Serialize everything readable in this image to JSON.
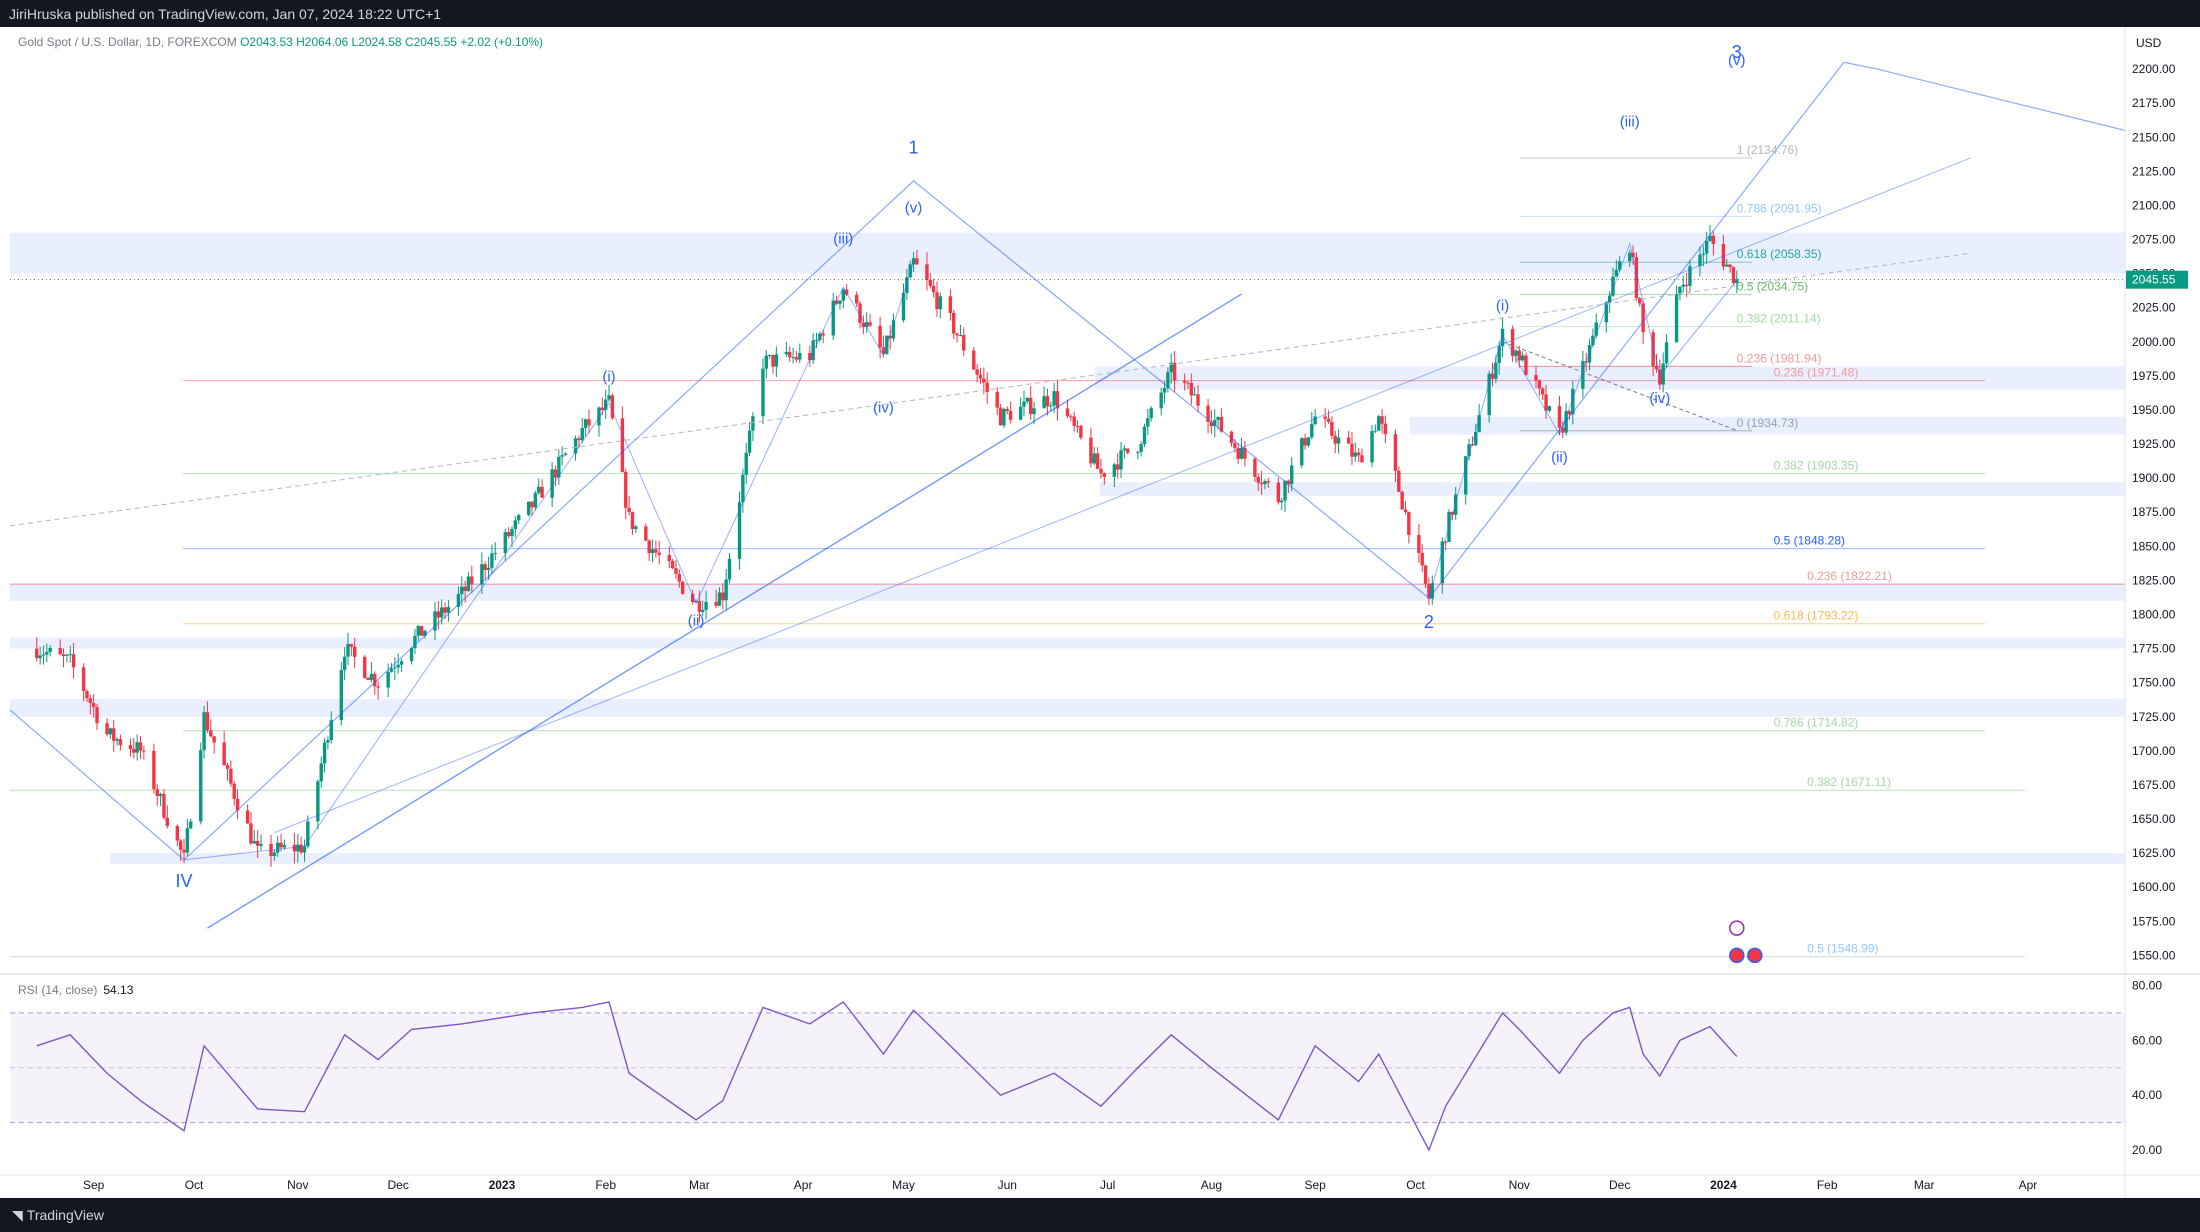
{
  "header": {
    "published": "JiriHruska published on TradingView.com, Jan 07, 2024 18:22 UTC+1"
  },
  "legend": {
    "symbol": "Gold Spot / U.S. Dollar, 1D, FOREXCOM",
    "o": "O2043.53",
    "h": "H2064.06",
    "l": "L2024.58",
    "c": "C2045.55",
    "chg": "+2.02 (+0.10%)"
  },
  "rsi": {
    "label": "RSI (14, close)",
    "value": "54.13"
  },
  "currency": "USD",
  "footer": {
    "brand": "TradingView"
  },
  "colors": {
    "up": "#089981",
    "down": "#f23645",
    "wave": "#2962ff",
    "rsi": "#7e57c2",
    "last": "#089981"
  },
  "chart_data": {
    "type": "candlestick",
    "title": "Gold Spot / U.S. Dollar, 1D, FOREXCOM",
    "ylim": [
      1540,
      2225
    ],
    "last_price": "2045.55",
    "price_ticks": [
      "2200.00",
      "2175.00",
      "2150.00",
      "2125.00",
      "2100.00",
      "2075.00",
      "2050.00",
      "2025.00",
      "2000.00",
      "1975.00",
      "1950.00",
      "1925.00",
      "1900.00",
      "1875.00",
      "1850.00",
      "1825.00",
      "1800.00",
      "1775.00",
      "1750.00",
      "1725.00",
      "1700.00",
      "1675.00",
      "1650.00",
      "1625.00",
      "1600.00",
      "1575.00",
      "1550.00"
    ],
    "time_ticks": [
      {
        "label": "Sep",
        "date": "2022-09-01"
      },
      {
        "label": "Oct",
        "date": "2022-10-01"
      },
      {
        "label": "Nov",
        "date": "2022-11-01"
      },
      {
        "label": "Dec",
        "date": "2022-12-01"
      },
      {
        "label": "2023",
        "date": "2023-01-01",
        "bold": true
      },
      {
        "label": "Feb",
        "date": "2023-02-01"
      },
      {
        "label": "Mar",
        "date": "2023-03-01"
      },
      {
        "label": "Apr",
        "date": "2023-04-01"
      },
      {
        "label": "May",
        "date": "2023-05-01"
      },
      {
        "label": "Jun",
        "date": "2023-06-01"
      },
      {
        "label": "Jul",
        "date": "2023-07-01"
      },
      {
        "label": "Aug",
        "date": "2023-08-01"
      },
      {
        "label": "Sep",
        "date": "2023-09-01"
      },
      {
        "label": "Oct",
        "date": "2023-10-01"
      },
      {
        "label": "Nov",
        "date": "2023-11-01"
      },
      {
        "label": "Dec",
        "date": "2023-12-01"
      },
      {
        "label": "2024",
        "date": "2024-01-01",
        "bold": true
      },
      {
        "label": "Feb",
        "date": "2024-02-01"
      },
      {
        "label": "Mar",
        "date": "2024-03-01"
      },
      {
        "label": "Apr",
        "date": "2024-04-01"
      }
    ],
    "price_path": [
      [
        "2022-08-15",
        1775
      ],
      [
        "2022-08-25",
        1765
      ],
      [
        "2022-09-05",
        1712
      ],
      [
        "2022-09-15",
        1700
      ],
      [
        "2022-09-28",
        1620
      ],
      [
        "2022-10-04",
        1725
      ],
      [
        "2022-10-20",
        1625
      ],
      [
        "2022-11-03",
        1630
      ],
      [
        "2022-11-15",
        1775
      ],
      [
        "2022-11-25",
        1750
      ],
      [
        "2022-12-05",
        1780
      ],
      [
        "2022-12-20",
        1815
      ],
      [
        "2023-01-10",
        1880
      ],
      [
        "2023-01-25",
        1935
      ],
      [
        "2023-02-02",
        1955
      ],
      [
        "2023-02-08",
        1870
      ],
      [
        "2023-02-28",
        1808
      ],
      [
        "2023-03-08",
        1815
      ],
      [
        "2023-03-20",
        1985
      ],
      [
        "2023-04-03",
        1990
      ],
      [
        "2023-04-13",
        2040
      ],
      [
        "2023-04-25",
        1990
      ],
      [
        "2023-05-04",
        2058
      ],
      [
        "2023-05-15",
        2015
      ],
      [
        "2023-05-30",
        1945
      ],
      [
        "2023-06-15",
        1960
      ],
      [
        "2023-06-29",
        1903
      ],
      [
        "2023-07-10",
        1925
      ],
      [
        "2023-07-20",
        1978
      ],
      [
        "2023-08-01",
        1945
      ],
      [
        "2023-08-21",
        1885
      ],
      [
        "2023-09-01",
        1945
      ],
      [
        "2023-09-14",
        1913
      ],
      [
        "2023-09-20",
        1945
      ],
      [
        "2023-10-05",
        1812
      ],
      [
        "2023-10-10",
        1860
      ],
      [
        "2023-10-27",
        2005
      ],
      [
        "2023-11-01",
        1990
      ],
      [
        "2023-11-13",
        1932
      ],
      [
        "2023-11-20",
        1980
      ],
      [
        "2023-11-29",
        2045
      ],
      [
        "2023-12-04",
        2072
      ],
      [
        "2023-12-08",
        2005
      ],
      [
        "2023-12-13",
        1975
      ],
      [
        "2023-12-19",
        2040
      ],
      [
        "2023-12-28",
        2075
      ],
      [
        "2024-01-05",
        2045
      ]
    ],
    "rsi": {
      "ylim": [
        12,
        82
      ],
      "ticks": [
        "80.00",
        "60.00",
        "40.00",
        "20.00"
      ],
      "levels": [
        70,
        50,
        30
      ],
      "path": [
        [
          "2022-08-15",
          58
        ],
        [
          "2022-08-25",
          62
        ],
        [
          "2022-09-05",
          48
        ],
        [
          "2022-09-15",
          38
        ],
        [
          "2022-09-28",
          27
        ],
        [
          "2022-10-04",
          58
        ],
        [
          "2022-10-20",
          35
        ],
        [
          "2022-11-03",
          34
        ],
        [
          "2022-11-15",
          62
        ],
        [
          "2022-11-25",
          53
        ],
        [
          "2022-12-05",
          64
        ],
        [
          "2022-12-20",
          66
        ],
        [
          "2023-01-10",
          70
        ],
        [
          "2023-01-25",
          72
        ],
        [
          "2023-02-02",
          74
        ],
        [
          "2023-02-08",
          48
        ],
        [
          "2023-02-28",
          31
        ],
        [
          "2023-03-08",
          38
        ],
        [
          "2023-03-20",
          72
        ],
        [
          "2023-04-03",
          66
        ],
        [
          "2023-04-13",
          74
        ],
        [
          "2023-04-25",
          55
        ],
        [
          "2023-05-04",
          71
        ],
        [
          "2023-05-15",
          58
        ],
        [
          "2023-05-30",
          40
        ],
        [
          "2023-06-15",
          48
        ],
        [
          "2023-06-29",
          36
        ],
        [
          "2023-07-10",
          50
        ],
        [
          "2023-07-20",
          62
        ],
        [
          "2023-08-01",
          50
        ],
        [
          "2023-08-21",
          31
        ],
        [
          "2023-09-01",
          58
        ],
        [
          "2023-09-14",
          45
        ],
        [
          "2023-09-20",
          55
        ],
        [
          "2023-10-05",
          20
        ],
        [
          "2023-10-10",
          36
        ],
        [
          "2023-10-27",
          70
        ],
        [
          "2023-11-01",
          64
        ],
        [
          "2023-11-13",
          48
        ],
        [
          "2023-11-20",
          60
        ],
        [
          "2023-11-29",
          70
        ],
        [
          "2023-12-04",
          72
        ],
        [
          "2023-12-08",
          55
        ],
        [
          "2023-12-13",
          47
        ],
        [
          "2023-12-19",
          60
        ],
        [
          "2023-12-28",
          65
        ],
        [
          "2024-01-05",
          54.13
        ]
      ]
    },
    "wave_labels": [
      {
        "text": "IV",
        "date": "2022-09-28",
        "price": 1600,
        "big": true
      },
      {
        "text": "(i)",
        "date": "2023-02-02",
        "price": 1971
      },
      {
        "text": "(ii)",
        "date": "2023-02-28",
        "price": 1792
      },
      {
        "text": "(iii)",
        "date": "2023-04-13",
        "price": 2072
      },
      {
        "text": "(iv)",
        "date": "2023-04-25",
        "price": 1948
      },
      {
        "text": "(v)",
        "date": "2023-05-04",
        "price": 2095
      },
      {
        "text": "1",
        "date": "2023-05-05",
        "price": 2138,
        "big": true
      },
      {
        "text": "2",
        "date": "2023-10-05",
        "price": 1790,
        "big": true
      },
      {
        "text": "(i)",
        "date": "2023-10-27",
        "price": 2023
      },
      {
        "text": "(ii)",
        "date": "2023-11-13",
        "price": 1912
      },
      {
        "text": "(iii)",
        "date": "2023-12-04",
        "price": 2158
      },
      {
        "text": "(iv)",
        "date": "2023-12-14",
        "price": 1955
      },
      {
        "text": "3",
        "date": "2024-02-06",
        "price": 2208,
        "big": true
      },
      {
        "text": "(v)",
        "date": "2024-02-16",
        "price": 2203
      }
    ],
    "fib_labels": [
      {
        "text": "1 (2134.76)",
        "date": "2024-01-05",
        "price": 2134.76,
        "color": "#b2b5be"
      },
      {
        "text": "0.786 (2091.95)",
        "date": "2024-01-05",
        "price": 2091.95,
        "color": "#90caf9"
      },
      {
        "text": "0.618 (2058.35)",
        "date": "2024-01-05",
        "price": 2058.35,
        "color": "#26a69a"
      },
      {
        "text": "0.5 (2034.75)",
        "date": "2024-01-05",
        "price": 2034.75,
        "color": "#66bb6a"
      },
      {
        "text": "0.382 (2011.14)",
        "date": "2024-01-05",
        "price": 2011.14,
        "color": "#a5d6a7"
      },
      {
        "text": "0.236 (1981.94)",
        "date": "2024-01-05",
        "price": 1981.94,
        "color": "#ef9a9a"
      },
      {
        "text": "0 (1934.73)",
        "date": "2024-01-05",
        "price": 1934.73,
        "color": "#90a4ae"
      },
      {
        "text": "0.236 (1971.48)",
        "date": "2024-01-16",
        "price": 1971.48,
        "color": "#ef9a9a"
      },
      {
        "text": "0.382 (1903.35)",
        "date": "2024-01-16",
        "price": 1903.35,
        "color": "#a5d6a7"
      },
      {
        "text": "0.5 (1848.28)",
        "date": "2024-01-16",
        "price": 1848.28,
        "color": "#2962ff"
      },
      {
        "text": "0.236 (1822.21)",
        "date": "2024-01-26",
        "price": 1822.21,
        "color": "#ef9a9a"
      },
      {
        "text": "0.618 (1793.22)",
        "date": "2024-01-16",
        "price": 1793.22,
        "color": "#ffb74d"
      },
      {
        "text": "0.786 (1714.82)",
        "date": "2024-01-16",
        "price": 1714.82,
        "color": "#a5d6a7"
      },
      {
        "text": "0.382 (1671.11)",
        "date": "2024-01-26",
        "price": 1671.11,
        "color": "#a5d6a7"
      },
      {
        "text": "0.5 (1548.99)",
        "date": "2024-01-26",
        "price": 1548.99,
        "color": "#90caf9"
      }
    ]
  }
}
